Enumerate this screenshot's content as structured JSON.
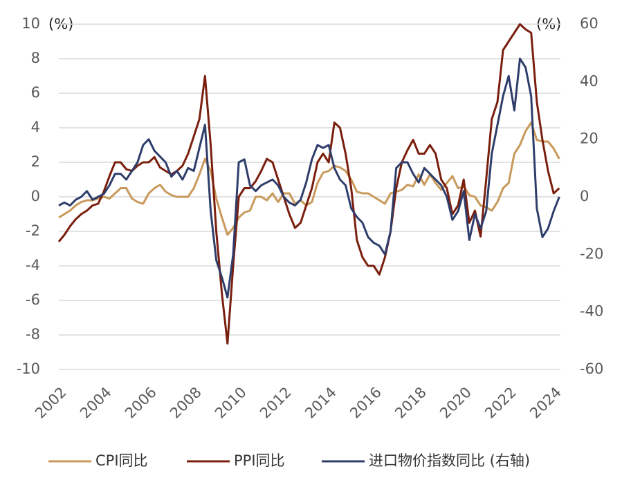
{
  "chart_data": {
    "type": "line",
    "y_label": "(%)",
    "y2_label": "(%)",
    "x": [
      2002,
      2002.25,
      2002.5,
      2002.75,
      2003,
      2003.25,
      2003.5,
      2003.75,
      2004,
      2004.25,
      2004.5,
      2004.75,
      2005,
      2005.25,
      2005.5,
      2005.75,
      2006,
      2006.25,
      2006.5,
      2006.75,
      2007,
      2007.25,
      2007.5,
      2007.75,
      2008,
      2008.25,
      2008.5,
      2008.75,
      2009,
      2009.25,
      2009.5,
      2009.75,
      2010,
      2010.25,
      2010.5,
      2010.75,
      2011,
      2011.25,
      2011.5,
      2011.75,
      2012,
      2012.25,
      2012.5,
      2012.75,
      2013,
      2013.25,
      2013.5,
      2013.75,
      2014,
      2014.25,
      2014.5,
      2014.75,
      2015,
      2015.25,
      2015.5,
      2015.75,
      2016,
      2016.25,
      2016.5,
      2016.75,
      2017,
      2017.25,
      2017.5,
      2017.75,
      2018,
      2018.25,
      2018.5,
      2018.75,
      2019,
      2019.25,
      2019.5,
      2019.75,
      2020,
      2020.25,
      2020.5,
      2020.75,
      2021,
      2021.25,
      2021.5,
      2021.75,
      2022,
      2022.25,
      2022.5,
      2022.75,
      2023,
      2023.25,
      2023.5,
      2023.75,
      2024,
      2024.25
    ],
    "xlim": [
      2002,
      2024.3
    ],
    "xticks": [
      2002,
      2004,
      2006,
      2008,
      2010,
      2012,
      2014,
      2016,
      2018,
      2020,
      2022,
      2024
    ],
    "ylim": [
      -10,
      10
    ],
    "yticks": [
      -10,
      -8,
      -6,
      -4,
      -2,
      0,
      2,
      4,
      6,
      8,
      10
    ],
    "y2lim": [
      -60,
      60
    ],
    "y2ticks": [
      -60,
      -40,
      -20,
      0,
      20,
      40,
      60
    ],
    "grid": true,
    "series": [
      {
        "name": "CPI同比",
        "color": "#c8995a",
        "values": [
          -1.2,
          -1.0,
          -0.8,
          -0.5,
          -0.3,
          -0.2,
          -0.2,
          -0.1,
          0,
          -0.1,
          0.2,
          0.5,
          0.5,
          -0.1,
          -0.3,
          -0.4,
          0.2,
          0.5,
          0.7,
          0.3,
          0.1,
          0,
          0,
          0,
          0.5,
          1.3,
          2.2,
          1.5,
          -0.1,
          -1.2,
          -2.2,
          -1.8,
          -1.2,
          -0.9,
          -0.8,
          0,
          0,
          -0.2,
          0.2,
          -0.3,
          0.2,
          0.2,
          -0.4,
          -0.2,
          -0.5,
          -0.3,
          0.8,
          1.4,
          1.5,
          1.8,
          1.7,
          1.5,
          1.0,
          0.3,
          0.2,
          0.2,
          0,
          -0.2,
          -0.4,
          0.2,
          0.3,
          0.4,
          0.7,
          0.6,
          1.3,
          0.7,
          1.3,
          0.8,
          0.4,
          0.8,
          1.2,
          0.5,
          0.6,
          0.1,
          0,
          -0.5,
          -0.6,
          -0.8,
          -0.3,
          0.5,
          0.8,
          2.5,
          3.0,
          3.8,
          4.3,
          3.3,
          3.2,
          3.2,
          2.8,
          2.2
        ]
      },
      {
        "name": "PPI同比",
        "color": "#7a1f0e",
        "values": [
          -2.6,
          -2.2,
          -1.7,
          -1.3,
          -1,
          -0.8,
          -0.5,
          -0.4,
          0.3,
          1.2,
          2.0,
          2.0,
          1.6,
          1.5,
          1.8,
          2.0,
          2.0,
          2.3,
          1.7,
          1.5,
          1.3,
          1.5,
          1.8,
          2.5,
          3.5,
          4.5,
          7.0,
          3.0,
          -2.0,
          -5.6,
          -8.5,
          -4.0,
          0,
          0.5,
          0.5,
          0.9,
          1.5,
          2.2,
          2.0,
          1.0,
          0,
          -1,
          -1.8,
          -1.5,
          -0.5,
          0.5,
          2.0,
          2.5,
          2.0,
          4.3,
          4.0,
          2.5,
          0.5,
          -2.5,
          -3.5,
          -4.0,
          -4.0,
          -4.5,
          -3.5,
          -2.0,
          0.5,
          2.0,
          2.7,
          3.3,
          2.5,
          2.5,
          3.0,
          2.5,
          1.0,
          0.5,
          -1,
          -0.5,
          1.0,
          -1.5,
          -0.8,
          -2.3,
          1.0,
          4.5,
          5.5,
          8.5,
          9.0,
          9.5,
          10.0,
          9.7,
          9.5,
          5.5,
          3.3,
          1.5,
          0.2,
          0.5
        ]
      },
      {
        "name": "进口物价指数同比 (右轴)",
        "color": "#2f3d6b",
        "axis": "y2",
        "values": [
          -3,
          -2,
          -3,
          -1,
          0,
          2,
          -1,
          0,
          1,
          4,
          8,
          8,
          6,
          9,
          12,
          18,
          20,
          16,
          14,
          12,
          7,
          9,
          6,
          10,
          9,
          17,
          25,
          -5,
          -22,
          -28,
          -35,
          -20,
          12,
          13,
          4,
          2,
          4,
          5,
          6,
          4,
          0,
          -2,
          -3,
          -1,
          5,
          13,
          18,
          17,
          18,
          10,
          6,
          4,
          -4,
          -7,
          -9,
          -14,
          -16,
          -17,
          -20,
          -12,
          10,
          12,
          12,
          8,
          5,
          10,
          8,
          6,
          4,
          0,
          -8,
          -5,
          2,
          -15,
          -6,
          -11,
          -5,
          15,
          25,
          35,
          42,
          30,
          48,
          45,
          35,
          -4,
          -14,
          -11,
          -5,
          0
        ]
      }
    ]
  }
}
